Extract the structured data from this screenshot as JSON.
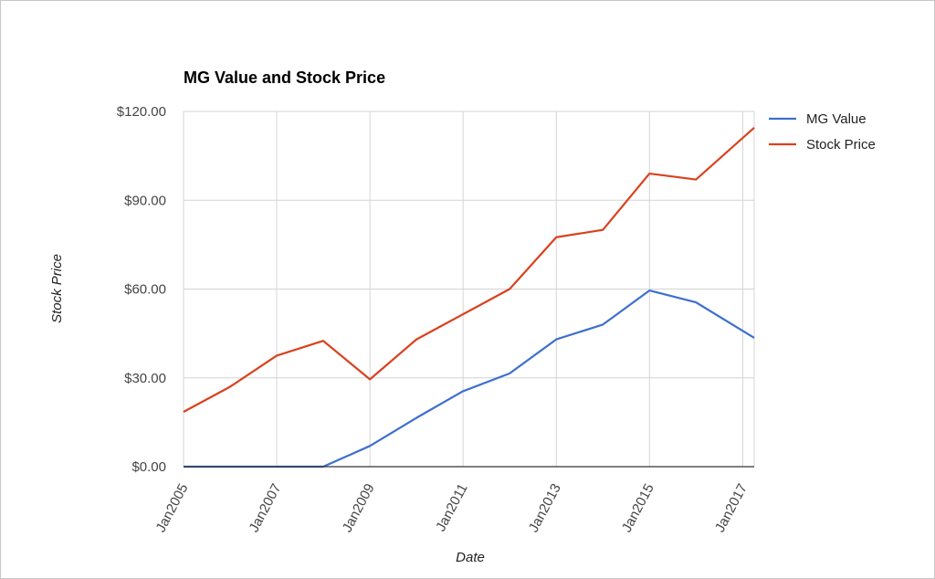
{
  "chart_data": {
    "type": "line",
    "title": "MG Value and Stock Price",
    "xlabel": "Date",
    "ylabel": "Stock Price",
    "x": [
      "2005-01",
      "2006-01",
      "2007-01",
      "2008-01",
      "2009-01",
      "2010-01",
      "2011-01",
      "2012-01",
      "2013-01",
      "2014-01",
      "2015-01",
      "2016-01",
      "2017-04"
    ],
    "x_tick_labels": [
      "Jan2005",
      "Jan2007",
      "Jan2009",
      "Jan2011",
      "Jan2013",
      "Jan2015",
      "Jan2017"
    ],
    "y_tick_labels": [
      "$0.00",
      "$30.00",
      "$60.00",
      "$90.00",
      "$120.00"
    ],
    "ylim": [
      0,
      120
    ],
    "y_ticks": [
      0,
      30,
      60,
      90,
      120
    ],
    "grid": true,
    "legend_position": "right",
    "series": [
      {
        "name": "MG Value",
        "color": "#3d6fcf",
        "values": [
          0,
          0,
          0,
          0,
          7,
          16.5,
          25.5,
          31.5,
          43,
          48,
          59.5,
          55.5,
          43.5
        ]
      },
      {
        "name": "Stock Price",
        "color": "#d9411e",
        "values": [
          18.5,
          27,
          37.5,
          42.5,
          29.5,
          43,
          51.5,
          60,
          77.5,
          80,
          99,
          97,
          114.5
        ]
      }
    ]
  }
}
